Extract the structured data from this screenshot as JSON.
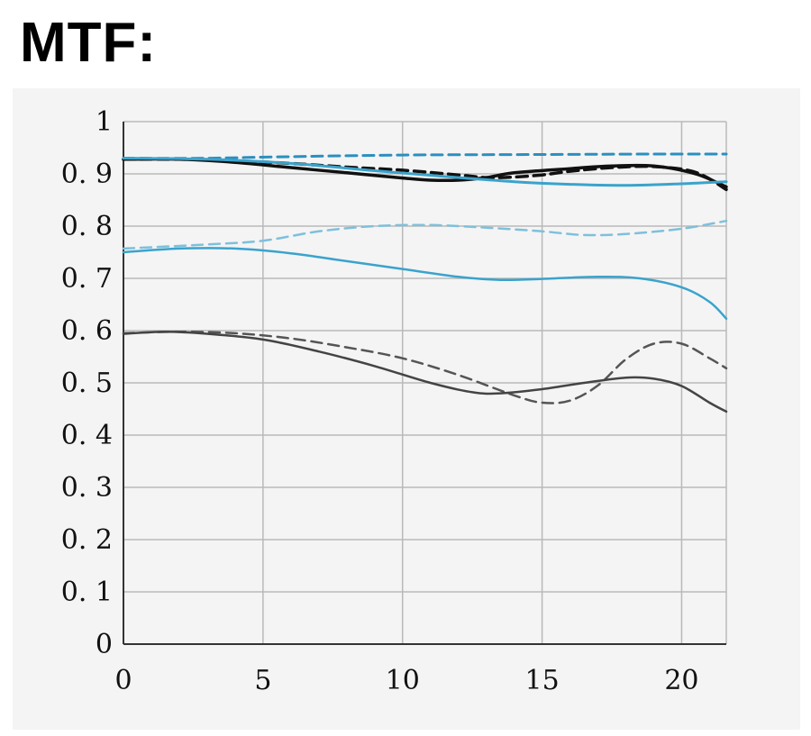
{
  "title": "MTF:",
  "chart_data": {
    "type": "line",
    "title": "",
    "xlabel": "",
    "ylabel": "",
    "xlim": [
      0,
      21.6
    ],
    "ylim": [
      0,
      1
    ],
    "grid": true,
    "x_ticks": [
      0,
      5,
      10,
      15,
      20
    ],
    "x_tick_labels": [
      "0",
      "5",
      "10",
      "15",
      "20"
    ],
    "y_ticks": [
      0,
      0.1,
      0.2,
      0.3,
      0.4,
      0.5,
      0.6,
      0.7,
      0.8,
      0.9,
      1
    ],
    "y_tick_labels": [
      "0",
      "0. 1",
      "0. 2",
      "0. 3",
      "0. 4",
      "0. 5",
      "0. 6",
      "0. 7",
      "0. 8",
      "0. 9",
      "1"
    ],
    "series": [
      {
        "color": "#2b8fbf",
        "dash": true,
        "width": 3,
        "points": [
          [
            0,
            0.93
          ],
          [
            3,
            0.93
          ],
          [
            6,
            0.933
          ],
          [
            10,
            0.936
          ],
          [
            15,
            0.937
          ],
          [
            19,
            0.938
          ],
          [
            21.6,
            0.938
          ]
        ]
      },
      {
        "color": "#111111",
        "dash": false,
        "width": 3.5,
        "points": [
          [
            0,
            0.928
          ],
          [
            2,
            0.928
          ],
          [
            4,
            0.922
          ],
          [
            6,
            0.912
          ],
          [
            8,
            0.902
          ],
          [
            10,
            0.892
          ],
          [
            11,
            0.888
          ],
          [
            12,
            0.888
          ],
          [
            13,
            0.893
          ],
          [
            14,
            0.902
          ],
          [
            16,
            0.91
          ],
          [
            17.5,
            0.915
          ],
          [
            19,
            0.915
          ],
          [
            20.5,
            0.9
          ],
          [
            21.6,
            0.875
          ]
        ]
      },
      {
        "color": "#111111",
        "dash": true,
        "width": 3.5,
        "points": [
          [
            0,
            0.928
          ],
          [
            2,
            0.928
          ],
          [
            4,
            0.925
          ],
          [
            6,
            0.92
          ],
          [
            8,
            0.913
          ],
          [
            10,
            0.907
          ],
          [
            12,
            0.898
          ],
          [
            13,
            0.893
          ],
          [
            14,
            0.894
          ],
          [
            15,
            0.898
          ],
          [
            16,
            0.905
          ],
          [
            17.5,
            0.912
          ],
          [
            19,
            0.914
          ],
          [
            20.5,
            0.903
          ],
          [
            21.6,
            0.87
          ]
        ]
      },
      {
        "color": "#3aa3cc",
        "dash": false,
        "width": 3,
        "points": [
          [
            0,
            0.93
          ],
          [
            3,
            0.928
          ],
          [
            6,
            0.92
          ],
          [
            9,
            0.906
          ],
          [
            12,
            0.893
          ],
          [
            14,
            0.885
          ],
          [
            16,
            0.88
          ],
          [
            18,
            0.878
          ],
          [
            20,
            0.881
          ],
          [
            21.6,
            0.885
          ]
        ]
      },
      {
        "color": "#7ec0dc",
        "dash": true,
        "width": 2.5,
        "points": [
          [
            0,
            0.757
          ],
          [
            3,
            0.765
          ],
          [
            5,
            0.772
          ],
          [
            7,
            0.79
          ],
          [
            9,
            0.8
          ],
          [
            11,
            0.802
          ],
          [
            13,
            0.797
          ],
          [
            15,
            0.79
          ],
          [
            16.5,
            0.783
          ],
          [
            18,
            0.785
          ],
          [
            20,
            0.795
          ],
          [
            21.6,
            0.81
          ]
        ]
      },
      {
        "color": "#3aa3cc",
        "dash": false,
        "width": 2.5,
        "points": [
          [
            0,
            0.75
          ],
          [
            2,
            0.757
          ],
          [
            4,
            0.757
          ],
          [
            6,
            0.748
          ],
          [
            8,
            0.733
          ],
          [
            10,
            0.718
          ],
          [
            12,
            0.703
          ],
          [
            13.5,
            0.697
          ],
          [
            15,
            0.699
          ],
          [
            17,
            0.703
          ],
          [
            18.5,
            0.7
          ],
          [
            20,
            0.683
          ],
          [
            21,
            0.655
          ],
          [
            21.6,
            0.623
          ]
        ]
      },
      {
        "color": "#555555",
        "dash": true,
        "width": 2.5,
        "points": [
          [
            0,
            0.595
          ],
          [
            2,
            0.598
          ],
          [
            4,
            0.595
          ],
          [
            6,
            0.585
          ],
          [
            8,
            0.568
          ],
          [
            10,
            0.547
          ],
          [
            12,
            0.515
          ],
          [
            14,
            0.476
          ],
          [
            15,
            0.462
          ],
          [
            16,
            0.466
          ],
          [
            17,
            0.495
          ],
          [
            18,
            0.545
          ],
          [
            19,
            0.575
          ],
          [
            20,
            0.575
          ],
          [
            21,
            0.547
          ],
          [
            21.6,
            0.528
          ]
        ]
      },
      {
        "color": "#444444",
        "dash": false,
        "width": 2.5,
        "points": [
          [
            0,
            0.594
          ],
          [
            1.5,
            0.598
          ],
          [
            3,
            0.594
          ],
          [
            5,
            0.583
          ],
          [
            7,
            0.56
          ],
          [
            9,
            0.532
          ],
          [
            11,
            0.5
          ],
          [
            12.5,
            0.482
          ],
          [
            13.5,
            0.48
          ],
          [
            15,
            0.488
          ],
          [
            16.5,
            0.5
          ],
          [
            18,
            0.51
          ],
          [
            19,
            0.508
          ],
          [
            20,
            0.494
          ],
          [
            21,
            0.462
          ],
          [
            21.6,
            0.445
          ]
        ]
      }
    ]
  }
}
